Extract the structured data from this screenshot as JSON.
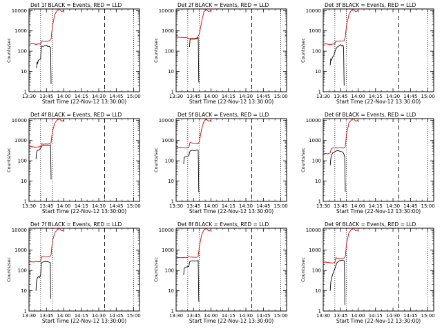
{
  "figure": {
    "xlabel": "Start Time (22-Nov-12 13:30:00)",
    "ylabel": "Counts/sec",
    "x_ticks": [
      "13:30",
      "13:45",
      "14:00",
      "14:15",
      "14:30",
      "14:45",
      "15:00"
    ],
    "y_ticks": [
      "1",
      "10",
      "100",
      "1000",
      "10000"
    ],
    "colors": {
      "events": "#000000",
      "lld": "#dd0000"
    }
  },
  "chart_data": [
    {
      "type": "line",
      "title": "Det 1f BLACK = Events, RED = LLD",
      "xlim_minutes": [
        0,
        95
      ],
      "ylim": [
        1,
        12000
      ],
      "yscale": "log",
      "dotted_x": [
        10,
        20,
        90
      ],
      "dashed_x": [
        65
      ],
      "series": [
        {
          "color": "#000000",
          "x": [
            0,
            5,
            6,
            6.5,
            7,
            7.5,
            8,
            9,
            10,
            10.5,
            11,
            12,
            14,
            15,
            16,
            17,
            18,
            18.5,
            19,
            19.2
          ],
          "y": [
            null,
            null,
            null,
            15,
            30,
            25,
            35,
            40,
            40,
            150,
            180,
            170,
            190,
            200,
            170,
            175,
            160,
            150,
            2.5,
            2.5
          ]
        },
        {
          "color": "#dd0000",
          "x": [
            0,
            2,
            4,
            6,
            8,
            10,
            11,
            12,
            14,
            16,
            17,
            18,
            19,
            20,
            22,
            24,
            26,
            28,
            30
          ],
          "y": [
            220,
            230,
            240,
            210,
            230,
            220,
            320,
            300,
            310,
            300,
            320,
            340,
            400,
            1500,
            6000,
            10000,
            12000,
            9000,
            10000
          ]
        }
      ]
    },
    {
      "type": "line",
      "title": "Det 2f BLACK = Events, RED = LLD",
      "xlim_minutes": [
        0,
        95
      ],
      "ylim": [
        1,
        12000
      ],
      "yscale": "log",
      "dotted_x": [
        10,
        20,
        90
      ],
      "dashed_x": [
        65
      ],
      "series": [
        {
          "color": "#000000",
          "x": [
            0,
            11,
            11.5,
            12,
            14,
            16,
            18,
            19,
            19.5,
            20
          ],
          "y": [
            null,
            null,
            160,
            380,
            400,
            390,
            420,
            460,
            3,
            3
          ]
        },
        {
          "color": "#dd0000",
          "x": [
            0,
            3,
            6,
            9,
            11,
            13,
            16,
            18,
            20,
            22,
            24,
            26,
            28,
            30
          ],
          "y": [
            480,
            480,
            470,
            460,
            430,
            420,
            420,
            450,
            700,
            3000,
            9000,
            11000,
            9000,
            10000
          ]
        }
      ]
    },
    {
      "type": "line",
      "title": "Det 3f BLACK = Events, RED = LLD",
      "xlim_minutes": [
        0,
        95
      ],
      "ylim": [
        1,
        12000
      ],
      "yscale": "log",
      "dotted_x": [
        10,
        20,
        90
      ],
      "dashed_x": [
        65
      ],
      "series": [
        {
          "color": "#000000",
          "x": [
            0,
            5.5,
            6,
            6.5,
            7,
            8,
            9,
            10,
            11,
            12,
            14,
            15,
            16,
            17,
            17.5,
            18
          ],
          "y": [
            null,
            null,
            20,
            40,
            35,
            50,
            60,
            90,
            130,
            160,
            190,
            210,
            180,
            200,
            150,
            2
          ]
        },
        {
          "color": "#dd0000",
          "x": [
            0,
            2,
            4,
            6,
            8,
            10,
            11,
            12,
            14,
            16,
            18,
            19,
            20,
            22,
            24,
            26,
            28,
            30
          ],
          "y": [
            220,
            230,
            220,
            210,
            220,
            230,
            310,
            300,
            320,
            310,
            330,
            500,
            1800,
            6000,
            10000,
            11000,
            9000,
            10000
          ]
        }
      ]
    },
    {
      "type": "line",
      "title": "Det 4f BLACK = Events, RED = LLD",
      "xlim_minutes": [
        0,
        95
      ],
      "ylim": [
        1,
        12000
      ],
      "yscale": "log",
      "dotted_x": [
        10,
        20,
        90
      ],
      "dashed_x": [
        65
      ],
      "series": [
        {
          "color": "#000000",
          "x": [
            0,
            5.5,
            6,
            6.5,
            7,
            9,
            11,
            12,
            14,
            16,
            18,
            18.5,
            19
          ],
          "y": [
            null,
            null,
            120,
            250,
            320,
            350,
            520,
            560,
            600,
            580,
            600,
            620,
            12
          ]
        },
        {
          "color": "#dd0000",
          "x": [
            0,
            2,
            4,
            6,
            8,
            10,
            11,
            12,
            14,
            16,
            18,
            19,
            20,
            22,
            24,
            26,
            28,
            30
          ],
          "y": [
            480,
            500,
            480,
            470,
            480,
            500,
            700,
            650,
            680,
            660,
            700,
            800,
            2500,
            7000,
            10000,
            12000,
            9000,
            10000
          ]
        }
      ]
    },
    {
      "type": "line",
      "title": "Det 5f BLACK = Events, RED = LLD",
      "xlim_minutes": [
        0,
        95
      ],
      "ylim": [
        1,
        12000
      ],
      "yscale": "log",
      "dotted_x": [
        10,
        20,
        90
      ],
      "dashed_x": [
        65
      ],
      "series": [
        {
          "color": "#000000",
          "x": [
            0,
            6,
            6.5,
            7,
            9,
            11,
            11.5,
            12,
            14,
            16,
            18,
            19,
            19.5,
            20
          ],
          "y": [
            null,
            null,
            70,
            150,
            160,
            180,
            250,
            300,
            330,
            320,
            340,
            330,
            3,
            3
          ]
        },
        {
          "color": "#dd0000",
          "x": [
            0,
            3,
            6,
            9,
            11,
            12,
            14,
            16,
            18,
            19,
            20,
            22,
            24,
            26,
            28,
            30
          ],
          "y": [
            450,
            460,
            450,
            440,
            460,
            800,
            750,
            700,
            720,
            700,
            900,
            4000,
            9000,
            11000,
            9000,
            10000
          ]
        }
      ]
    },
    {
      "type": "line",
      "title": "Det 6f BLACK = Events, RED = LLD",
      "xlim_minutes": [
        0,
        95
      ],
      "ylim": [
        1,
        12000
      ],
      "yscale": "log",
      "dotted_x": [
        10,
        20,
        90
      ],
      "dashed_x": [
        65
      ],
      "series": [
        {
          "color": "#000000",
          "x": [
            0,
            5.5,
            6,
            6.5,
            7,
            8,
            9,
            10,
            11,
            12,
            14,
            16,
            17,
            18,
            18.5,
            19
          ],
          "y": [
            null,
            null,
            60,
            120,
            180,
            240,
            260,
            280,
            300,
            320,
            300,
            280,
            260,
            200,
            150,
            3
          ]
        },
        {
          "color": "#dd0000",
          "x": [
            0,
            2,
            4,
            6,
            7,
            8,
            10,
            11,
            12,
            14,
            16,
            18,
            19,
            20,
            22,
            24,
            26,
            28,
            30
          ],
          "y": [
            220,
            230,
            220,
            250,
            400,
            420,
            430,
            450,
            420,
            440,
            430,
            420,
            500,
            2000,
            7000,
            10000,
            12000,
            9000,
            10000
          ]
        }
      ]
    },
    {
      "type": "line",
      "title": "Det 7f BLACK = Events, RED = LLD",
      "xlim_minutes": [
        0,
        95
      ],
      "ylim": [
        1,
        12000
      ],
      "yscale": "log",
      "dotted_x": [
        10,
        20,
        90
      ],
      "dashed_x": [
        65
      ],
      "series": [
        {
          "color": "#000000",
          "x": [
            0,
            5.5,
            6,
            6.5,
            7,
            8,
            9,
            10,
            10.5,
            11,
            12,
            14,
            16,
            17,
            18,
            18.3,
            18.6
          ],
          "y": [
            null,
            null,
            10,
            30,
            40,
            50,
            45,
            60,
            200,
            250,
            260,
            280,
            270,
            260,
            250,
            240,
            4
          ]
        },
        {
          "color": "#dd0000",
          "x": [
            0,
            2,
            4,
            6,
            8,
            10,
            11,
            12,
            14,
            16,
            18,
            19,
            20,
            22,
            24,
            26,
            28,
            30
          ],
          "y": [
            260,
            270,
            260,
            280,
            270,
            270,
            500,
            480,
            460,
            470,
            480,
            600,
            2500,
            7000,
            10000,
            12000,
            9000,
            10000
          ]
        }
      ]
    },
    {
      "type": "line",
      "title": "Det 8f BLACK = Events, RED = LLD",
      "xlim_minutes": [
        0,
        95
      ],
      "ylim": [
        1,
        12000
      ],
      "yscale": "log",
      "dotted_x": [
        10,
        20,
        90
      ],
      "dashed_x": [
        65
      ],
      "series": [
        {
          "color": "#000000",
          "x": [
            0,
            6,
            6.5,
            7,
            9,
            11,
            11.5,
            12,
            14,
            16,
            18,
            19,
            19.5,
            20
          ],
          "y": [
            null,
            null,
            60,
            130,
            150,
            160,
            250,
            280,
            300,
            290,
            300,
            310,
            3,
            3
          ]
        },
        {
          "color": "#dd0000",
          "x": [
            0,
            2,
            4,
            6,
            8,
            10,
            11,
            12,
            14,
            16,
            18,
            19,
            20,
            22,
            24,
            26,
            28,
            30
          ],
          "y": [
            420,
            430,
            420,
            430,
            440,
            430,
            480,
            460,
            450,
            440,
            450,
            500,
            1500,
            6000,
            10000,
            12000,
            9000,
            10000
          ]
        }
      ]
    },
    {
      "type": "line",
      "title": "Det 9f BLACK = Events, RED = LLD",
      "xlim_minutes": [
        0,
        95
      ],
      "ylim": [
        1,
        12000
      ],
      "yscale": "log",
      "dotted_x": [
        10,
        20,
        90
      ],
      "dashed_x": [
        65
      ],
      "series": [
        {
          "color": "#000000",
          "x": [
            0,
            5.5,
            6,
            6.5,
            7,
            8,
            9,
            10,
            11,
            12,
            14,
            16,
            17,
            18,
            18.3,
            18.6
          ],
          "y": [
            null,
            null,
            10,
            25,
            40,
            60,
            90,
            120,
            180,
            250,
            300,
            320,
            310,
            300,
            280,
            2
          ]
        },
        {
          "color": "#dd0000",
          "x": [
            0,
            2,
            4,
            6,
            8,
            10,
            11,
            12,
            14,
            16,
            18,
            19,
            20,
            22,
            24,
            26,
            28,
            30
          ],
          "y": [
            250,
            260,
            250,
            240,
            230,
            250,
            420,
            400,
            380,
            390,
            400,
            500,
            2000,
            7000,
            10000,
            12000,
            9000,
            10000
          ]
        }
      ]
    }
  ]
}
